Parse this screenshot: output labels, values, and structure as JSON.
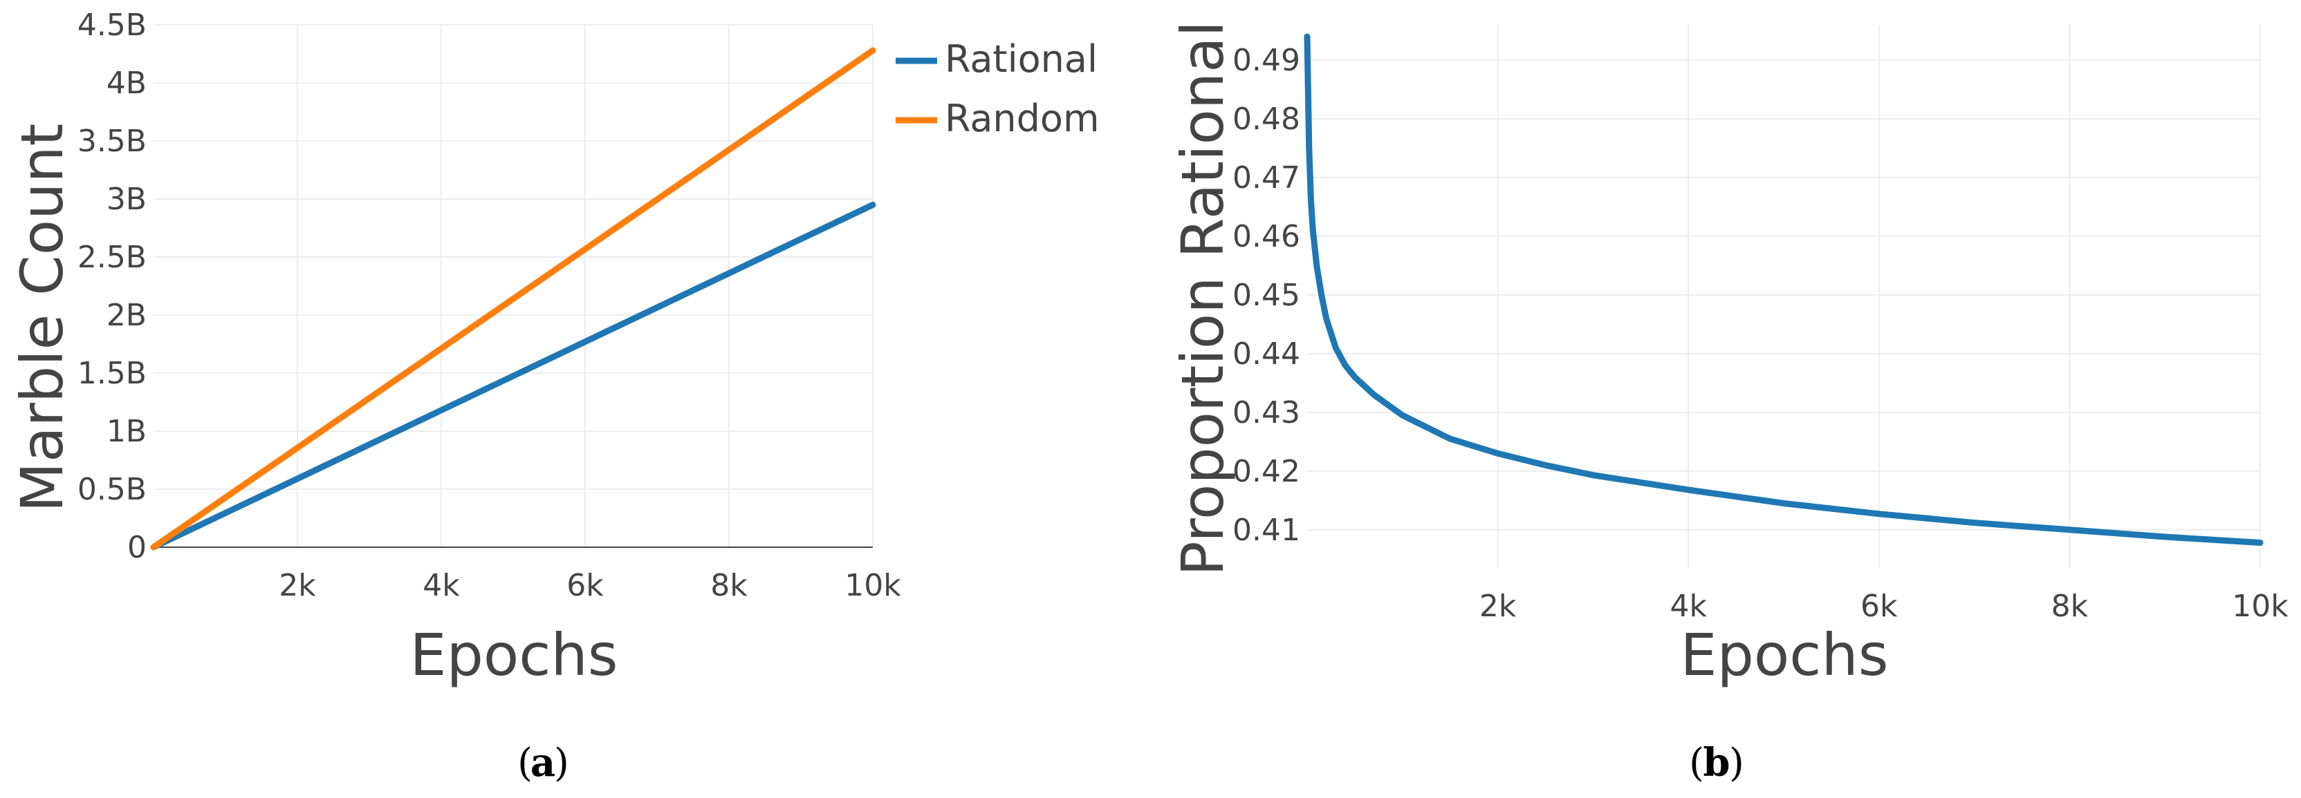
{
  "chart_data": [
    {
      "type": "line",
      "panel_label": "a",
      "xlabel": "Epochs",
      "ylabel": "Marble Count",
      "xlim": [
        0,
        10000
      ],
      "ylim": [
        0,
        4500000000
      ],
      "x_ticks": [
        2000,
        4000,
        6000,
        8000,
        10000
      ],
      "x_tick_labels": [
        "2k",
        "4k",
        "6k",
        "8k",
        "10k"
      ],
      "y_ticks": [
        0,
        500000000,
        1000000000,
        1500000000,
        2000000000,
        2500000000,
        3000000000,
        3500000000,
        4000000000,
        4500000000
      ],
      "y_tick_labels": [
        "0",
        "0.5B",
        "1B",
        "1.5B",
        "2B",
        "2.5B",
        "3B",
        "3.5B",
        "4B",
        "4.5B"
      ],
      "grid": true,
      "legend_position": "top-right-outside",
      "series": [
        {
          "name": "Rational",
          "color": "#1f77b4",
          "x": [
            0,
            10000
          ],
          "y": [
            0,
            2950000000
          ]
        },
        {
          "name": "Random",
          "color": "#ff7f0e",
          "x": [
            0,
            10000
          ],
          "y": [
            0,
            4280000000
          ]
        }
      ]
    },
    {
      "type": "line",
      "panel_label": "b",
      "xlabel": "Epochs",
      "ylabel": "Proportion Rational",
      "xlim": [
        0,
        10000
      ],
      "ylim": [
        0.4035,
        0.496
      ],
      "x_ticks": [
        2000,
        4000,
        6000,
        8000,
        10000
      ],
      "x_tick_labels": [
        "2k",
        "4k",
        "6k",
        "8k",
        "10k"
      ],
      "y_ticks": [
        0.41,
        0.42,
        0.43,
        0.44,
        0.45,
        0.46,
        0.47,
        0.48,
        0.49
      ],
      "y_tick_labels": [
        "0.41",
        "0.42",
        "0.43",
        "0.44",
        "0.45",
        "0.46",
        "0.47",
        "0.48",
        "0.49"
      ],
      "grid": true,
      "series": [
        {
          "color": "#1f77b4",
          "x": [
            0,
            20,
            40,
            60,
            100,
            150,
            200,
            300,
            400,
            500,
            700,
            1000,
            1500,
            2000,
            2500,
            3000,
            4000,
            5000,
            6000,
            7000,
            8000,
            9000,
            10000
          ],
          "y": [
            0.494,
            0.475,
            0.466,
            0.461,
            0.455,
            0.45,
            0.446,
            0.441,
            0.438,
            0.436,
            0.433,
            0.4295,
            0.4255,
            0.423,
            0.421,
            0.4193,
            0.4168,
            0.4145,
            0.4127,
            0.4112,
            0.41,
            0.4088,
            0.4078
          ]
        }
      ]
    }
  ]
}
